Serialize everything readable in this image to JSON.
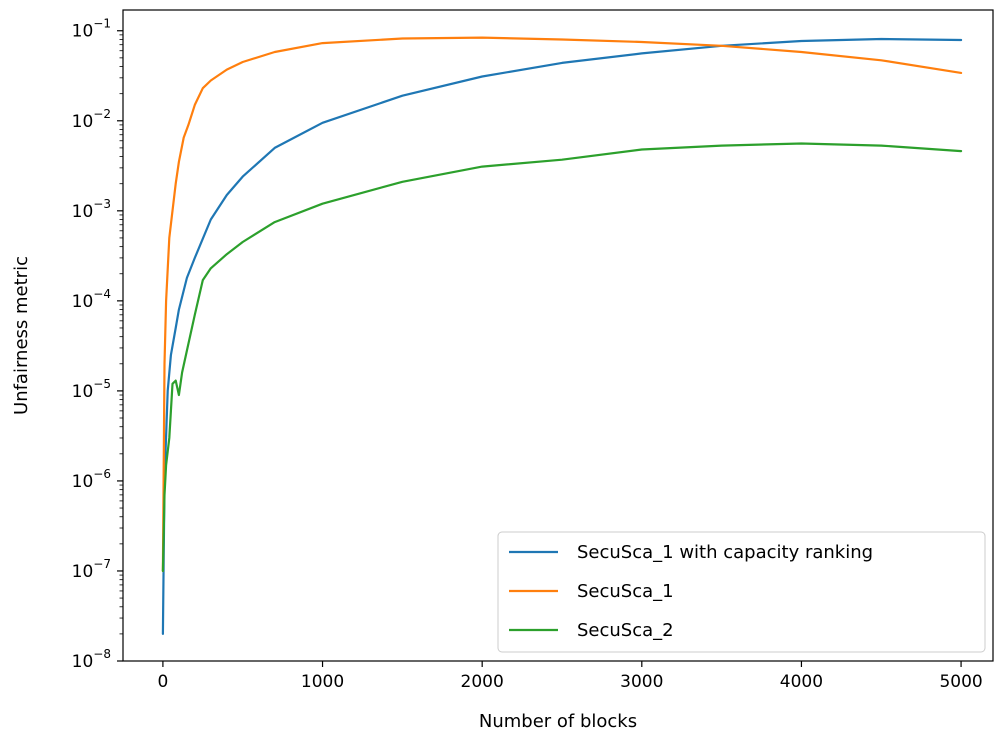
{
  "chart_data": {
    "type": "line",
    "title": "",
    "xlabel": "Number of blocks",
    "ylabel": "Unfairness metric",
    "xlim": [
      -250,
      5200
    ],
    "ylim": [
      1e-08,
      0.17
    ],
    "yscale": "log",
    "grid": false,
    "legend_position": "lower-right",
    "x_ticks": [
      {
        "value": 0,
        "label": "0"
      },
      {
        "value": 1000,
        "label": "1000"
      },
      {
        "value": 2000,
        "label": "2000"
      },
      {
        "value": 3000,
        "label": "3000"
      },
      {
        "value": 4000,
        "label": "4000"
      },
      {
        "value": 5000,
        "label": "5000"
      }
    ],
    "y_ticks": [
      {
        "value": 1e-08,
        "mantissa": "10",
        "exp": "−8"
      },
      {
        "value": 1e-07,
        "mantissa": "10",
        "exp": "−7"
      },
      {
        "value": 1e-06,
        "mantissa": "10",
        "exp": "−6"
      },
      {
        "value": 1e-05,
        "mantissa": "10",
        "exp": "−5"
      },
      {
        "value": 0.0001,
        "mantissa": "10",
        "exp": "−4"
      },
      {
        "value": 0.001,
        "mantissa": "10",
        "exp": "−3"
      },
      {
        "value": 0.01,
        "mantissa": "10",
        "exp": "−2"
      },
      {
        "value": 0.1,
        "mantissa": "10",
        "exp": "−1"
      }
    ],
    "series": [
      {
        "name": "SecuSca_1 with capacity ranking",
        "color": "#1f77b4",
        "x": [
          0,
          10,
          30,
          50,
          80,
          100,
          150,
          200,
          300,
          400,
          500,
          700,
          1000,
          1500,
          2000,
          2500,
          3000,
          3500,
          4000,
          4500,
          5000
        ],
        "y": [
          2e-08,
          1e-06,
          1e-05,
          2.5e-05,
          5e-05,
          8e-05,
          0.00018,
          0.0003,
          0.0008,
          0.0015,
          0.0024,
          0.005,
          0.0095,
          0.019,
          0.031,
          0.044,
          0.056,
          0.068,
          0.077,
          0.081,
          0.079
        ]
      },
      {
        "name": "SecuSca_1",
        "color": "#ff7f0e",
        "x": [
          0,
          10,
          20,
          40,
          60,
          80,
          100,
          130,
          160,
          200,
          250,
          300,
          400,
          500,
          700,
          1000,
          1500,
          2000,
          2500,
          3000,
          3500,
          4000,
          4500,
          5000
        ],
        "y": [
          1e-07,
          2e-05,
          0.0001,
          0.0005,
          0.001,
          0.002,
          0.0035,
          0.0065,
          0.009,
          0.015,
          0.023,
          0.028,
          0.037,
          0.045,
          0.058,
          0.073,
          0.082,
          0.084,
          0.08,
          0.075,
          0.068,
          0.058,
          0.047,
          0.034
        ]
      },
      {
        "name": "SecuSca_2",
        "color": "#2ca02c",
        "x": [
          0,
          10,
          20,
          40,
          50,
          60,
          80,
          100,
          120,
          150,
          200,
          250,
          300,
          400,
          500,
          700,
          1000,
          1500,
          2000,
          2500,
          3000,
          3500,
          4000,
          4500,
          5000
        ],
        "y": [
          1e-07,
          7e-07,
          1.5e-06,
          3e-06,
          6e-06,
          1.2e-05,
          1.3e-05,
          9e-06,
          1.6e-05,
          2.8e-05,
          7e-05,
          0.00017,
          0.00023,
          0.00033,
          0.00045,
          0.00075,
          0.0012,
          0.0021,
          0.0031,
          0.0037,
          0.0048,
          0.0053,
          0.0056,
          0.0053,
          0.0046
        ]
      }
    ]
  }
}
